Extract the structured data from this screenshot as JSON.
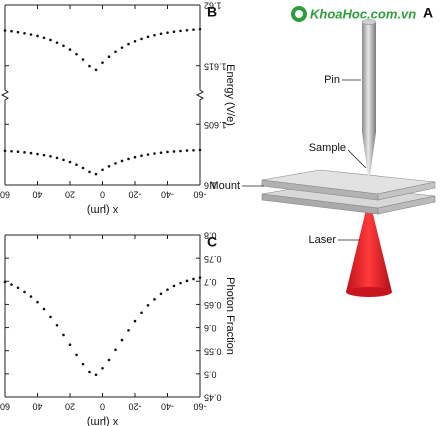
{
  "watermark": "KhoaHoc.com.vn",
  "diagram": {
    "label": "A",
    "pin": "Pin",
    "sample": "Sample",
    "mount": "Mount",
    "laser": "Laser"
  },
  "chart_data": [
    {
      "type": "scatter",
      "label": "B",
      "ylabel": "Energy (V/e)",
      "xlabel": "x (μm)",
      "broken_axis": true,
      "x": [
        -60,
        -56,
        -52,
        -48,
        -44,
        -40,
        -36,
        -32,
        -28,
        -24,
        -20,
        -16,
        -12,
        -8,
        -4,
        0,
        4,
        8,
        12,
        16,
        20,
        24,
        28,
        32,
        36,
        40,
        44,
        48,
        52,
        56,
        60
      ],
      "xlim": [
        60,
        -60
      ],
      "xticks": [
        60,
        40,
        20,
        0,
        -20,
        -40,
        -60
      ],
      "ylim": [
        1.6,
        1.607
      ],
      "yticks": [
        1.6,
        1.605
      ],
      "y2lim": [
        1.613,
        1.62
      ],
      "y2ticks": [
        1.615,
        1.62
      ],
      "series": [
        {
          "color": "#111111",
          "values": [
            1.60289,
            1.60286,
            1.60284,
            1.6028,
            1.60276,
            1.60272,
            1.60266,
            1.60259,
            1.60251,
            1.60241,
            1.60229,
            1.60215,
            1.60198,
            1.60178,
            1.60154,
            1.60125,
            1.6009,
            1.60108,
            1.6014,
            1.60167,
            1.60189,
            1.60207,
            1.60223,
            1.60236,
            1.60246,
            1.60255,
            1.60263,
            1.60269,
            1.60274,
            1.60278,
            1.60282
          ]
        },
        {
          "color": "#111111",
          "axis": "y2",
          "values": [
            1.61801,
            1.61797,
            1.61792,
            1.61787,
            1.6178,
            1.61772,
            1.61763,
            1.61751,
            1.61738,
            1.61721,
            1.61701,
            1.61678,
            1.61649,
            1.61615,
            1.61574,
            1.61525,
            1.61466,
            1.61497,
            1.61551,
            1.61595,
            1.61633,
            1.61664,
            1.6169,
            1.61712,
            1.6173,
            1.61745,
            1.61757,
            1.61767,
            1.61776,
            1.61784,
            1.6179
          ]
        }
      ]
    },
    {
      "type": "scatter",
      "label": "C",
      "ylabel": "Photon Fraction",
      "xlabel": "x (μm)",
      "x": [
        -60,
        -56,
        -52,
        -48,
        -44,
        -40,
        -36,
        -32,
        -28,
        -24,
        -20,
        -16,
        -12,
        -8,
        -4,
        0,
        4,
        8,
        12,
        16,
        20,
        24,
        28,
        32,
        36,
        40,
        44,
        48,
        52,
        56,
        60
      ],
      "xlim": [
        60,
        -60
      ],
      "xticks": [
        60,
        40,
        20,
        0,
        -20,
        -40,
        -60
      ],
      "ylim": [
        0.45,
        0.8
      ],
      "yticks": [
        0.45,
        0.5,
        0.55,
        0.6,
        0.65,
        0.7,
        0.75,
        0.8
      ],
      "series": [
        {
          "color": "#111111",
          "values": [
            0.708,
            0.705,
            0.701,
            0.696,
            0.69,
            0.682,
            0.673,
            0.661,
            0.648,
            0.632,
            0.614,
            0.594,
            0.573,
            0.552,
            0.53,
            0.512,
            0.498,
            0.504,
            0.521,
            0.541,
            0.563,
            0.584,
            0.605,
            0.623,
            0.64,
            0.655,
            0.667,
            0.677,
            0.686,
            0.693,
            0.699
          ]
        }
      ]
    }
  ]
}
